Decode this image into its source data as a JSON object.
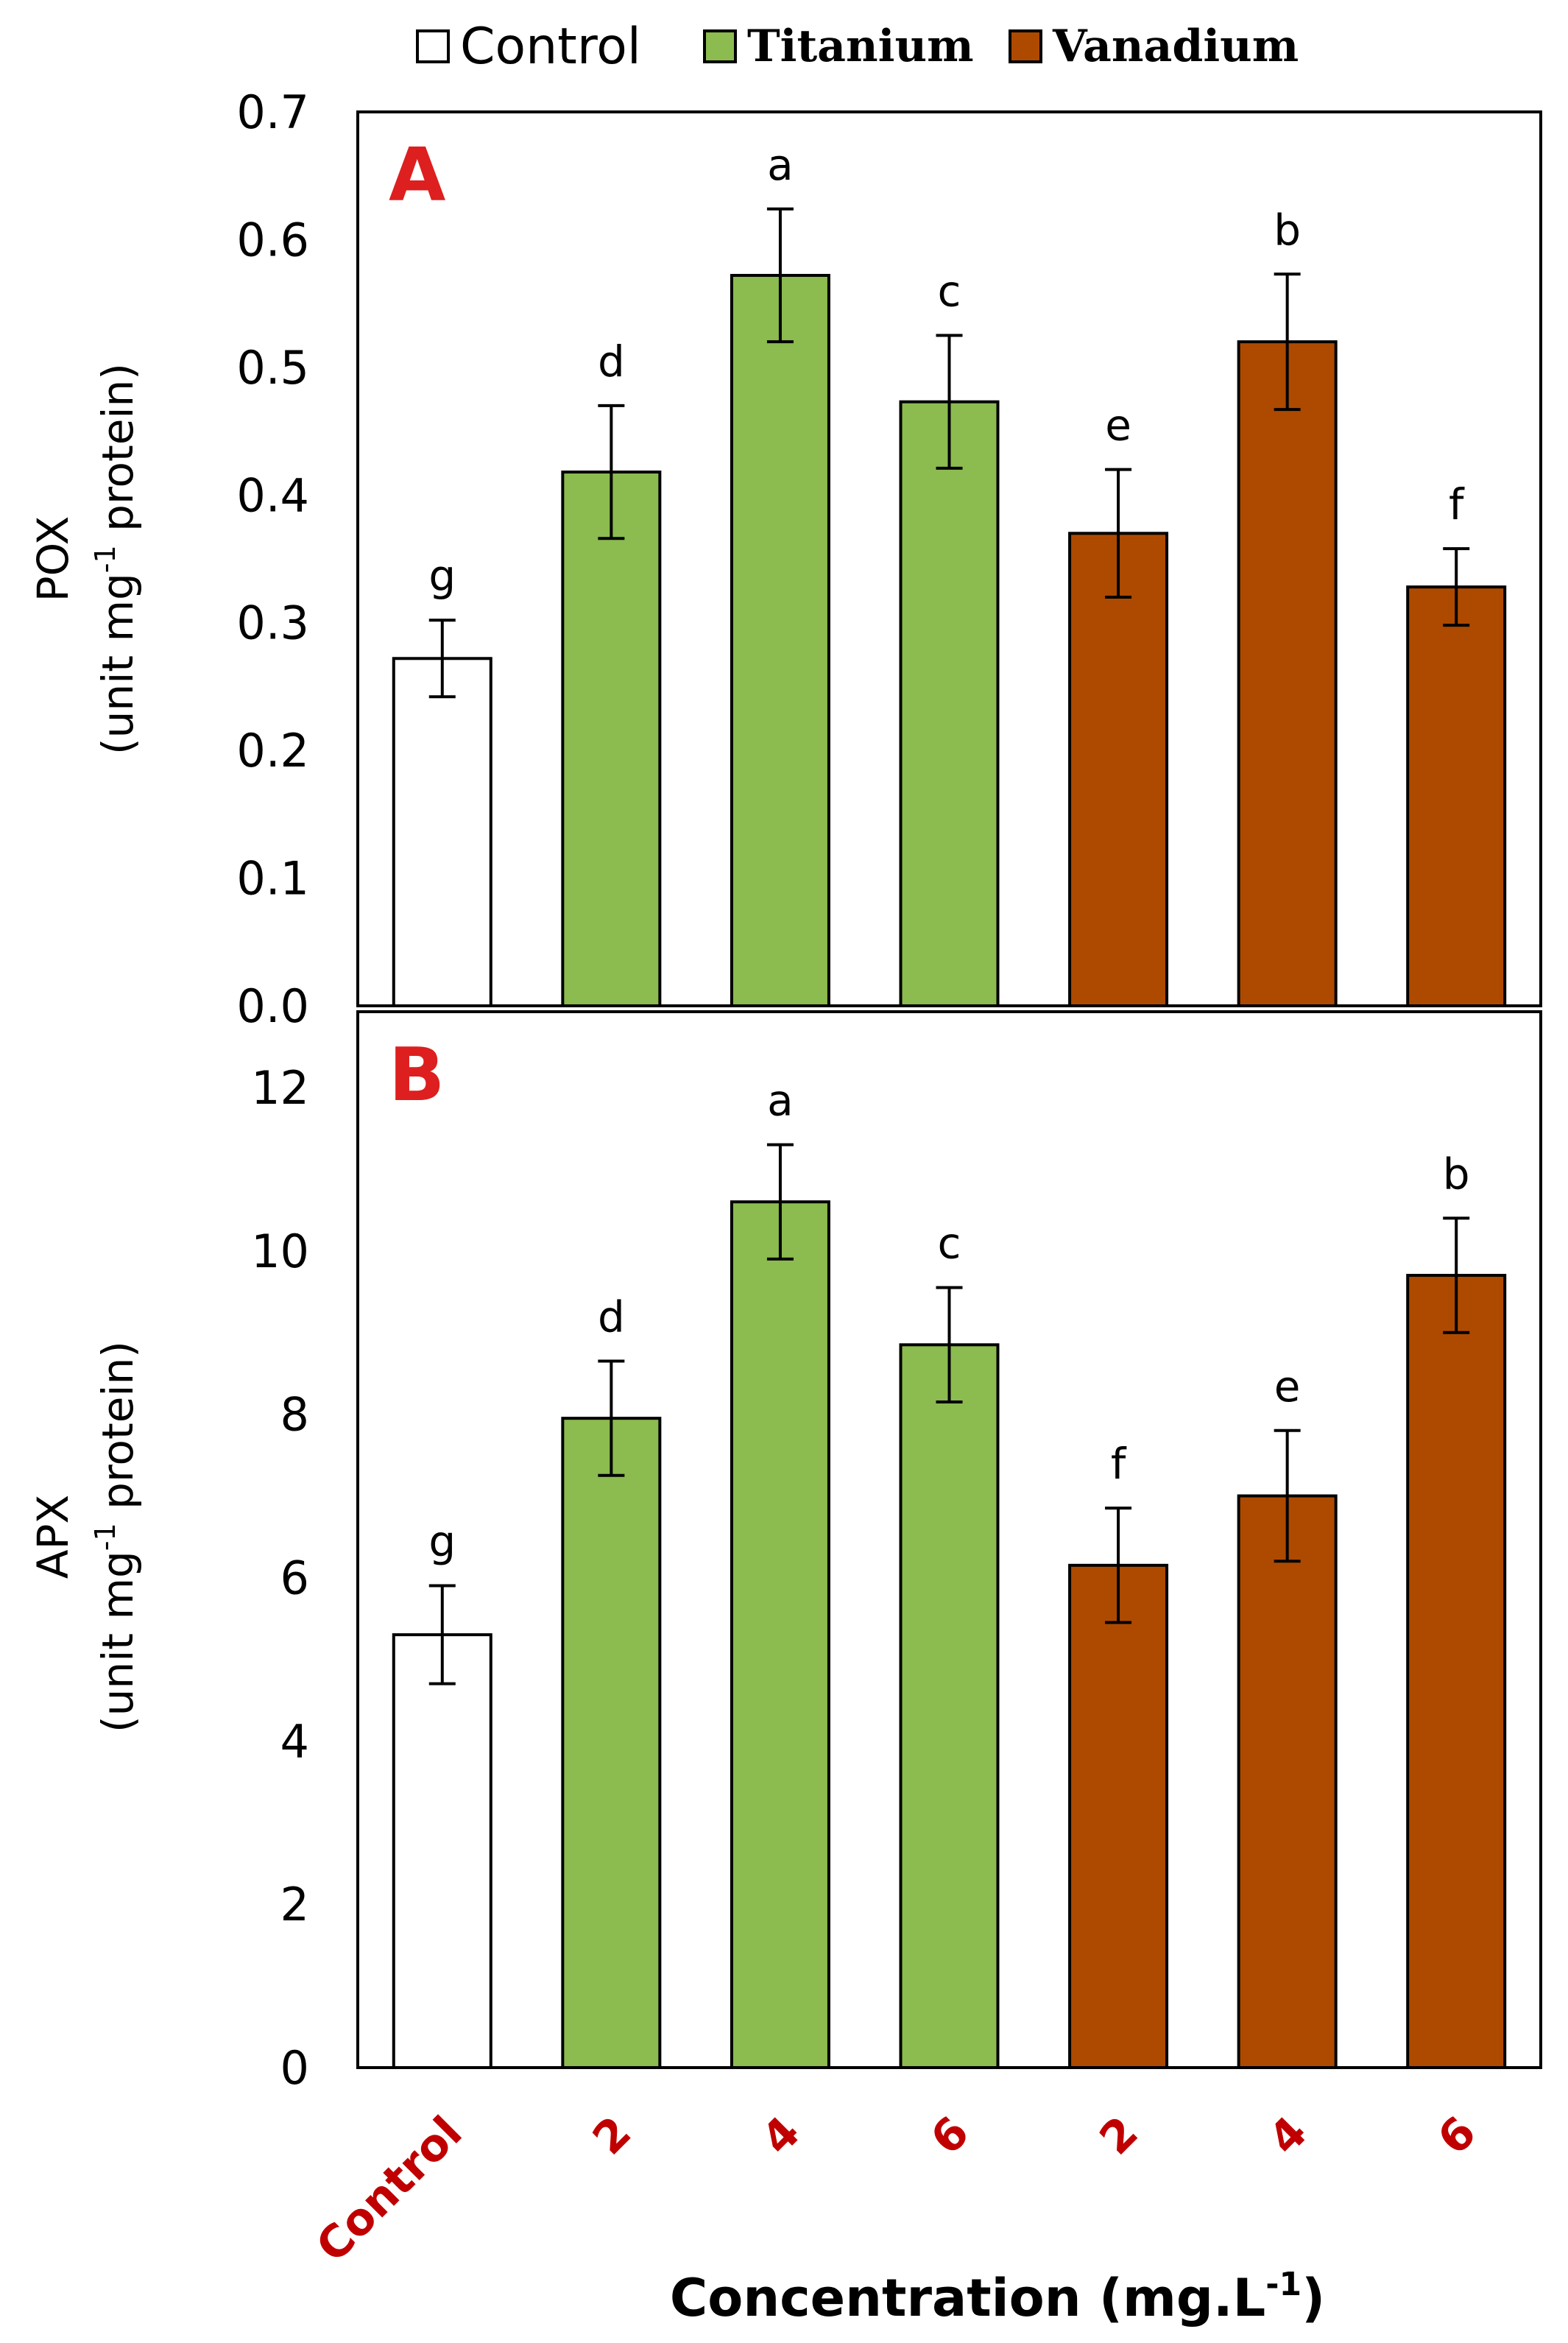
{
  "legend": {
    "control": "Control",
    "titanium": "Titanium",
    "vanadium": "Vanadium"
  },
  "colors": {
    "control": "#ffffff",
    "titanium": "#8cbb4f",
    "vanadium": "#ae4a00",
    "panel_letter": "#dd1f1f",
    "category_label": "#c00000"
  },
  "x_axis": {
    "title": "Concentration (mg.L",
    "title_superscript": "-1",
    "title_close": ")",
    "categories": [
      "Control",
      "2",
      "4",
      "6",
      "2",
      "4",
      "6"
    ],
    "groups": [
      "control",
      "titanium",
      "titanium",
      "titanium",
      "vanadium",
      "vanadium",
      "vanadium"
    ]
  },
  "chart_data": [
    {
      "type": "bar",
      "panel": "A",
      "ylabel_line1": "POX",
      "ylabel_line2_pre": "(unit mg",
      "ylabel_line2_sup": "-1",
      "ylabel_line2_post": " protein)",
      "ylim": [
        0,
        0.7
      ],
      "yticks": [
        "0.0",
        "0.1",
        "0.2",
        "0.3",
        "0.4",
        "0.5",
        "0.6",
        "0.7"
      ],
      "categories": [
        "Control",
        "2",
        "4",
        "6",
        "2",
        "4",
        "6"
      ],
      "values": [
        0.272,
        0.418,
        0.572,
        0.473,
        0.37,
        0.52,
        0.328
      ],
      "errors": [
        0.03,
        0.052,
        0.052,
        0.052,
        0.05,
        0.053,
        0.03
      ],
      "significance": [
        "g",
        "d",
        "a",
        "c",
        "e",
        "b",
        "f"
      ]
    },
    {
      "type": "bar",
      "panel": "B",
      "ylabel_line1": "APX",
      "ylabel_line2_pre": "(unit mg",
      "ylabel_line2_sup": "-1",
      "ylabel_line2_post": " protein)",
      "ylim": [
        0,
        13
      ],
      "yticks": [
        "0",
        "2",
        "4",
        "6",
        "8",
        "10",
        "12"
      ],
      "categories": [
        "Control",
        "2",
        "4",
        "6",
        "2",
        "4",
        "6"
      ],
      "values": [
        5.3,
        7.95,
        10.6,
        8.85,
        6.15,
        7.0,
        9.7
      ],
      "errors": [
        0.6,
        0.7,
        0.7,
        0.7,
        0.7,
        0.8,
        0.7
      ],
      "significance": [
        "g",
        "d",
        "a",
        "c",
        "f",
        "e",
        "b"
      ]
    }
  ]
}
